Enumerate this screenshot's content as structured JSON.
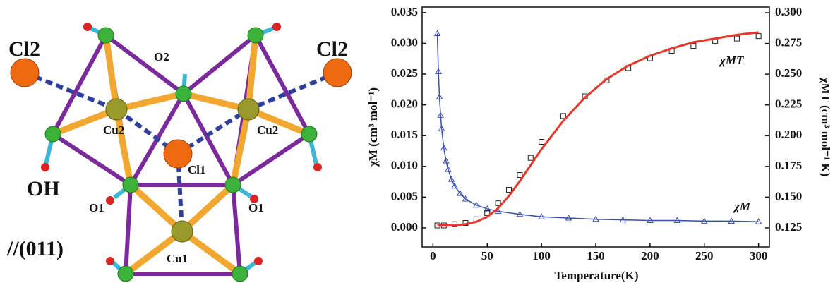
{
  "diagram": {
    "labels": [
      "Cl2",
      "Cl2",
      "O2",
      "Cu2",
      "Cu2",
      "Cl1",
      "OH",
      "O1",
      "O1",
      "Cu1",
      "//(011)"
    ]
  },
  "chart_data": {
    "type": "scatter",
    "x_label": "Temperature(K)",
    "y_label": "χM (cm³ mol⁻¹)",
    "y2_label": "χMT (cm³ mol⁻¹ K)",
    "xlim": [
      -10,
      310
    ],
    "xticks": [
      0,
      50,
      100,
      150,
      200,
      250,
      300
    ],
    "ylim": [
      -0.0031,
      0.0359
    ],
    "yticks": [
      {
        "value": 0,
        "label": "0.000"
      },
      0.005,
      {
        "value": 0.01,
        "label": "0.010"
      },
      0.015,
      {
        "value": 0.02,
        "label": "0.020"
      },
      0.025,
      {
        "value": 0.03,
        "label": "0.030"
      },
      0.035
    ],
    "y2lim": [
      0.1095,
      0.3046
    ],
    "y2ticks": [
      0.125,
      {
        "value": 0.15,
        "label": "0.150"
      },
      0.175,
      {
        "value": 0.2,
        "label": "0.200"
      },
      0.225,
      {
        "value": 0.25,
        "label": "0.250"
      },
      0.275,
      {
        "value": 0.3,
        "label": "0.300"
      }
    ],
    "series": [
      {
        "name": "χM",
        "color": "#3a4fa8",
        "marker": "triangle",
        "line": true,
        "axis": "y",
        "x": [
          4,
          5,
          6,
          7,
          8,
          10,
          12,
          14,
          17,
          20,
          25,
          30,
          40,
          50,
          60,
          80,
          100,
          125,
          150,
          175,
          200,
          225,
          250,
          275,
          300
        ],
        "values": [
          0.0316,
          0.0254,
          0.0213,
          0.0183,
          0.0161,
          0.013,
          0.0109,
          0.0095,
          0.0079,
          0.0068,
          0.0056,
          0.0047,
          0.0037,
          0.0031,
          0.0027,
          0.0022,
          0.0018,
          0.0016,
          0.0014,
          0.0013,
          0.0012,
          0.0012,
          0.0011,
          0.0011,
          0.001
        ]
      },
      {
        "name": "χMT",
        "color": "#222222",
        "marker": "square",
        "line": false,
        "axis": "y2",
        "x": [
          4,
          10,
          20,
          30,
          40,
          50,
          60,
          70,
          80,
          90,
          100,
          120,
          140,
          160,
          180,
          200,
          220,
          240,
          260,
          280,
          300
        ],
        "values": [
          0.127,
          0.127,
          0.128,
          0.129,
          0.132,
          0.137,
          0.145,
          0.156,
          0.168,
          0.182,
          0.195,
          0.216,
          0.232,
          0.245,
          0.255,
          0.263,
          0.269,
          0.273,
          0.277,
          0.279,
          0.281
        ]
      },
      {
        "color": "#e8382c",
        "marker": null,
        "line": true,
        "axis": "y2",
        "x": [
          4,
          20,
          30,
          40,
          50,
          60,
          70,
          80,
          90,
          100,
          120,
          140,
          160,
          180,
          200,
          220,
          240,
          260,
          280,
          300
        ],
        "values": [
          0.127,
          0.127,
          0.128,
          0.13,
          0.134,
          0.141,
          0.151,
          0.163,
          0.176,
          0.189,
          0.212,
          0.231,
          0.246,
          0.257,
          0.265,
          0.271,
          0.276,
          0.279,
          0.282,
          0.284
        ]
      }
    ]
  }
}
